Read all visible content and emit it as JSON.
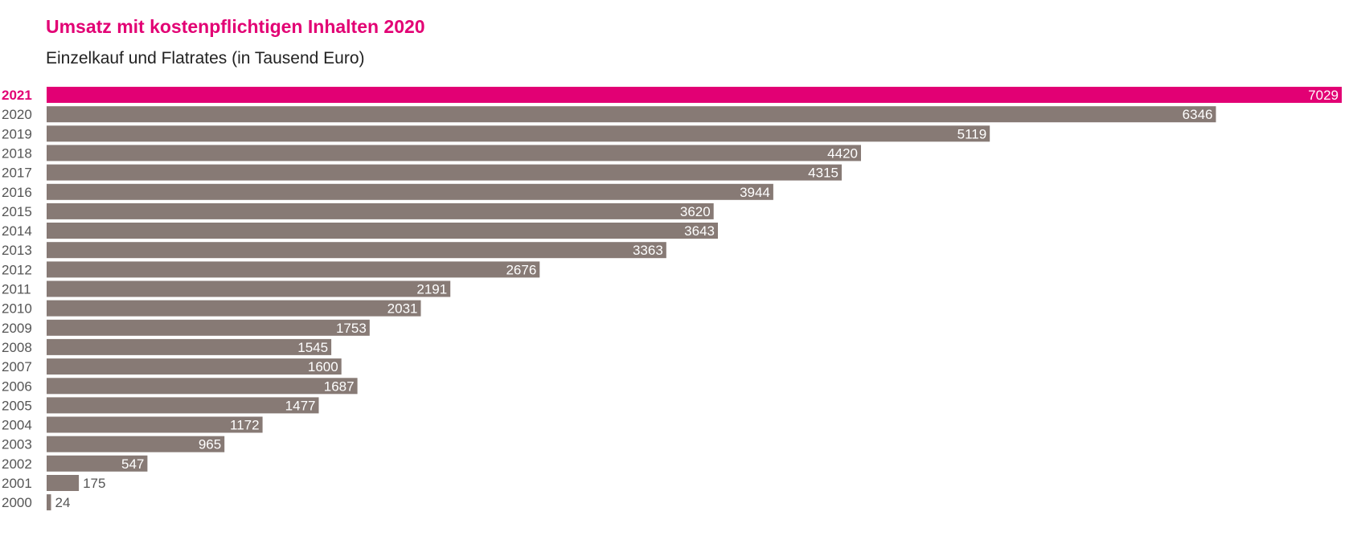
{
  "header": {
    "title": "Umsatz mit kostenpflichtigen Inhalten 2020",
    "subtitle": "Einzelkauf und Flatrates (in Tausend Euro)"
  },
  "colors": {
    "highlight": "#e20074",
    "bar": "#877a75",
    "label_dark": "#555555",
    "label_light": "#ffffff"
  },
  "chart_data": {
    "type": "bar",
    "orientation": "horizontal",
    "title": "Umsatz mit kostenpflichtigen Inhalten 2020",
    "subtitle": "Einzelkauf und Flatrates (in Tausend Euro)",
    "highlight_category": "2021",
    "xlim": [
      0,
      7029
    ],
    "grid": false,
    "categories": [
      "2021",
      "2020",
      "2019",
      "2018",
      "2017",
      "2016",
      "2015",
      "2014",
      "2013",
      "2012",
      "2011",
      "2010",
      "2009",
      "2008",
      "2007",
      "2006",
      "2005",
      "2004",
      "2003",
      "2002",
      "2001",
      "2000"
    ],
    "values": [
      7029,
      6346,
      5119,
      4420,
      4315,
      3944,
      3620,
      3643,
      3363,
      2676,
      2191,
      2031,
      1753,
      1545,
      1600,
      1687,
      1477,
      1172,
      965,
      547,
      175,
      24
    ]
  }
}
